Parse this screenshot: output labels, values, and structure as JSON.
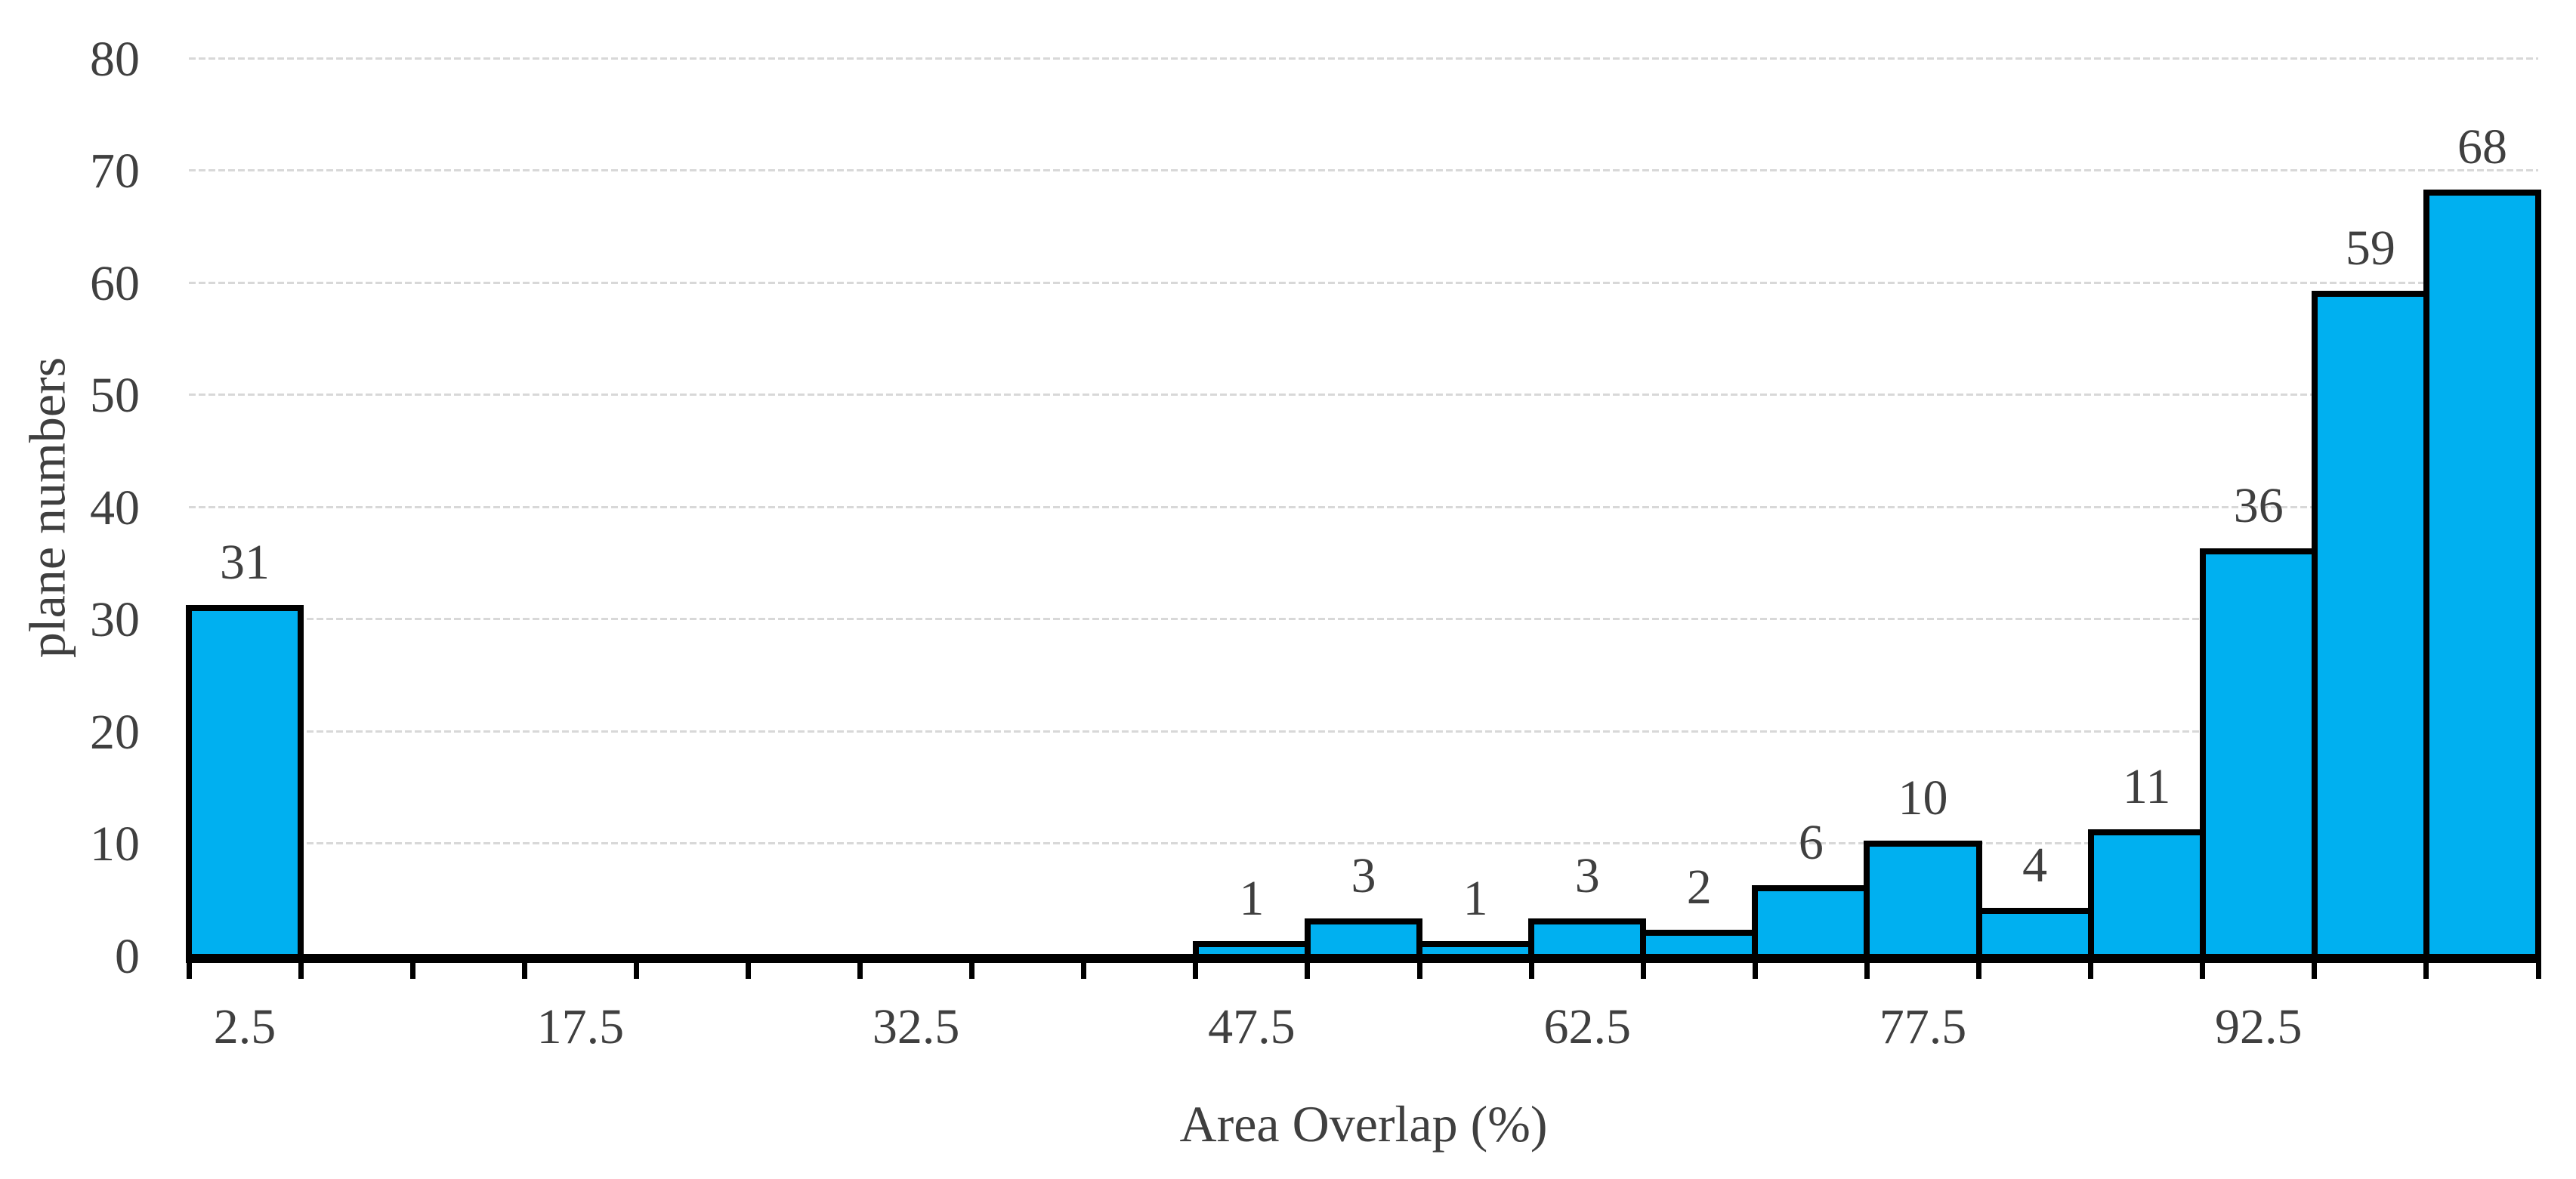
{
  "chart_data": {
    "type": "bar",
    "subtype": "histogram",
    "title": "",
    "xlabel": "Area Overlap (%)",
    "ylabel": "plane numbers",
    "categories": [
      "2.5",
      "",
      "",
      "17.5",
      "",
      "",
      "32.5",
      "",
      "",
      "47.5",
      "",
      "",
      "62.5",
      "",
      "",
      "77.5",
      "",
      "",
      "92.5",
      "",
      ""
    ],
    "values": [
      31,
      0,
      0,
      0,
      0,
      0,
      0,
      0,
      0,
      1,
      3,
      1,
      3,
      2,
      6,
      10,
      4,
      11,
      36,
      59,
      68
    ],
    "value_labels_shown": [
      31,
      1,
      3,
      1,
      3,
      2,
      6,
      10,
      4,
      11,
      36,
      59,
      68
    ],
    "yticks": [
      0,
      10,
      20,
      30,
      40,
      50,
      60,
      70,
      80
    ],
    "ylim": [
      0,
      80
    ],
    "grid": "horizontal-dashed",
    "legend_position": "none",
    "bar_color": "#00B0F0",
    "bar_border_color": "#000000",
    "axis_color": "#000000",
    "text_color": "#3f3f3f",
    "gridline_color": "#d8d8d8"
  }
}
